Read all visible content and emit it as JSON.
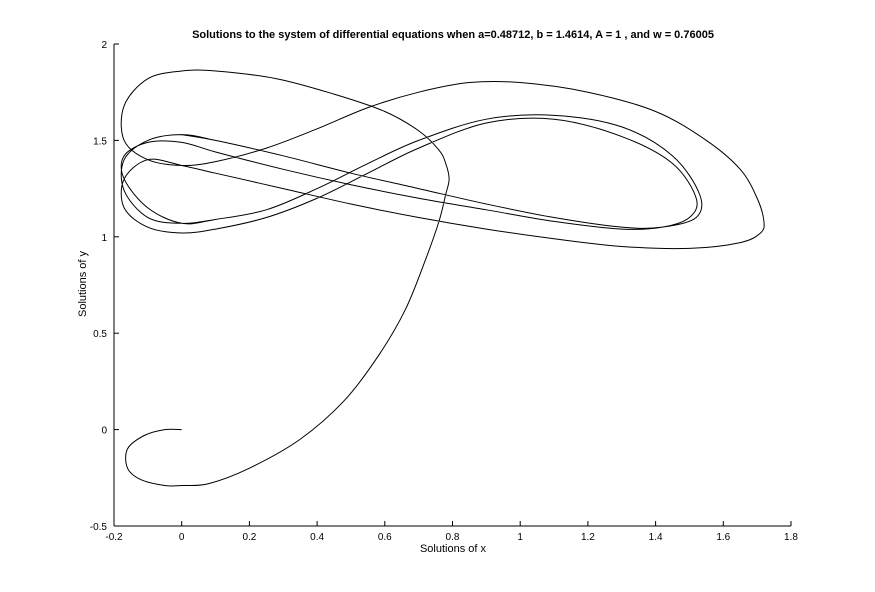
{
  "chart_data": {
    "type": "line",
    "title": "Solutions to the system of differential equations when a=0.48712, b = 1.4614, A = 1 , and w = 0.76005",
    "xlabel": "Solutions of x",
    "ylabel": "Solutions of y",
    "xlim": [
      -0.2,
      1.8
    ],
    "ylim": [
      -0.5,
      2
    ],
    "xticks": [
      -0.2,
      0,
      0.2,
      0.4,
      0.6,
      0.8,
      1,
      1.2,
      1.4,
      1.6,
      1.8
    ],
    "xtick_labels": [
      "-0.2",
      "0",
      "0.2",
      "0.4",
      "0.6",
      "0.8",
      "1",
      "1.2",
      "1.4",
      "1.6",
      "1.8"
    ],
    "yticks": [
      -0.5,
      0,
      0.5,
      1,
      1.5,
      2
    ],
    "ytick_labels": [
      "-0.5",
      "0",
      "0.5",
      "1",
      "1.5",
      "2"
    ],
    "grid": false,
    "line_color": "#000000",
    "series": [
      {
        "x": [
          0,
          -0.05,
          -0.11,
          -0.16,
          -0.16,
          -0.12,
          -0.05,
          0,
          0.08,
          0.2,
          0.35,
          0.48,
          0.58,
          0.66,
          0.72,
          0.76,
          0.78,
          0.79,
          0.78,
          0.76,
          0.7,
          0.6,
          0.45,
          0.28,
          0.1,
          0,
          -0.1,
          -0.17,
          -0.17,
          -0.1,
          0,
          0.1,
          0.25,
          0.4,
          0.55,
          0.7,
          0.85,
          1.0,
          1.2,
          1.4,
          1.55,
          1.65,
          1.7,
          1.72,
          1.71,
          1.65,
          1.5,
          1.3,
          1.1,
          0.9,
          0.7,
          0.5,
          0.3,
          0.1,
          0,
          -0.1,
          -0.17,
          -0.17,
          -0.1,
          0,
          0.1,
          0.25,
          0.4,
          0.55,
          0.7,
          0.9,
          1.1,
          1.3,
          1.45,
          1.52,
          1.5,
          1.42,
          1.3,
          1.1,
          0.9,
          0.7,
          0.5,
          0.3,
          0.1,
          0,
          -0.1,
          -0.17,
          -0.17,
          -0.1,
          0,
          0.1,
          0.25,
          0.4,
          0.55,
          0.7,
          0.9,
          1.1,
          1.3,
          1.45,
          1.53,
          1.52,
          1.42,
          1.3,
          1.1,
          0.9,
          0.7,
          0.5,
          0.3,
          0.1,
          0,
          -0.1,
          -0.17,
          -0.17,
          -0.1,
          0,
          0.1,
          0.25,
          0.4,
          0.55,
          0.7,
          0.9,
          1.1,
          1.3,
          1.45,
          1.53,
          1.52,
          1.42,
          1.3,
          1.1,
          0.9,
          0.7,
          0.5,
          0.3,
          0.1,
          0
        ],
        "y": [
          0,
          0,
          -0.03,
          -0.1,
          -0.2,
          -0.26,
          -0.29,
          -0.29,
          -0.28,
          -0.2,
          -0.05,
          0.15,
          0.38,
          0.62,
          0.88,
          1.08,
          1.22,
          1.3,
          1.38,
          1.45,
          1.55,
          1.65,
          1.74,
          1.82,
          1.86,
          1.86,
          1.82,
          1.68,
          1.5,
          1.4,
          1.37,
          1.39,
          1.46,
          1.56,
          1.67,
          1.75,
          1.8,
          1.8,
          1.75,
          1.65,
          1.5,
          1.35,
          1.2,
          1.08,
          1.02,
          0.97,
          0.94,
          0.95,
          0.99,
          1.04,
          1.1,
          1.17,
          1.25,
          1.33,
          1.37,
          1.4,
          1.3,
          1.15,
          1.05,
          1.02,
          1.04,
          1.1,
          1.2,
          1.33,
          1.46,
          1.59,
          1.61,
          1.52,
          1.38,
          1.2,
          1.1,
          1.05,
          1.04,
          1.08,
          1.14,
          1.2,
          1.27,
          1.35,
          1.44,
          1.49,
          1.49,
          1.42,
          1.3,
          1.15,
          1.07,
          1.09,
          1.14,
          1.25,
          1.38,
          1.5,
          1.61,
          1.63,
          1.57,
          1.42,
          1.22,
          1.1,
          1.05,
          1.05,
          1.1,
          1.17,
          1.25,
          1.33,
          1.42,
          1.5,
          1.53,
          1.5,
          1.4,
          1.24,
          1.1,
          1.07,
          1.09,
          1.14,
          1.25,
          1.38,
          1.5,
          1.61,
          1.63,
          1.57,
          1.42,
          1.22,
          1.1,
          1.05,
          1.05,
          1.1,
          1.17,
          1.25,
          1.33,
          1.42,
          1.5,
          1.53
        ]
      }
    ]
  }
}
